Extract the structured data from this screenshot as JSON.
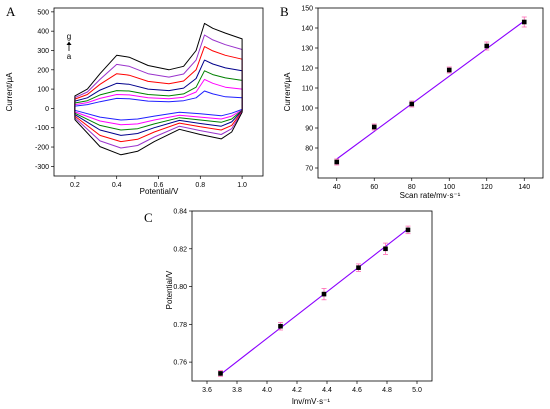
{
  "panels": [
    {
      "letter": "A",
      "chart_data": {
        "type": "line",
        "xlabel": "Potential/V",
        "ylabel": "Current/μA",
        "xlim": [
          0.1,
          1.1
        ],
        "ylim": [
          -350,
          520
        ],
        "xticks": [
          0.2,
          0.4,
          0.6,
          0.8,
          1.0
        ],
        "yticks": [
          -300,
          -200,
          -100,
          0,
          100,
          200,
          300,
          400,
          500
        ],
        "legend_top": "g",
        "legend_bottom": "a",
        "legend_arrow": "up-arrow",
        "series": [
          {
            "color": "#1f1fff",
            "upper": [
              [
                0.2,
                12
              ],
              [
                0.26,
                20
              ],
              [
                0.32,
                35
              ],
              [
                0.4,
                52
              ],
              [
                0.46,
                50
              ],
              [
                0.55,
                38
              ],
              [
                0.65,
                35
              ],
              [
                0.72,
                40
              ],
              [
                0.78,
                55
              ],
              [
                0.82,
                90
              ],
              [
                0.86,
                75
              ],
              [
                0.92,
                60
              ],
              [
                1.0,
                55
              ]
            ],
            "lower": [
              [
                1.0,
                -5
              ],
              [
                0.95,
                -25
              ],
              [
                0.9,
                -38
              ],
              [
                0.8,
                -28
              ],
              [
                0.7,
                -20
              ],
              [
                0.58,
                -40
              ],
              [
                0.5,
                -55
              ],
              [
                0.42,
                -60
              ],
              [
                0.32,
                -45
              ],
              [
                0.2,
                -10
              ]
            ]
          },
          {
            "color": "#ff00ff",
            "upper": [
              [
                0.2,
                20
              ],
              [
                0.26,
                30
              ],
              [
                0.32,
                52
              ],
              [
                0.4,
                72
              ],
              [
                0.46,
                70
              ],
              [
                0.55,
                55
              ],
              [
                0.65,
                50
              ],
              [
                0.72,
                58
              ],
              [
                0.78,
                85
              ],
              [
                0.82,
                150
              ],
              [
                0.86,
                130
              ],
              [
                0.92,
                110
              ],
              [
                1.0,
                100
              ]
            ],
            "lower": [
              [
                1.0,
                -8
              ],
              [
                0.95,
                -40
              ],
              [
                0.9,
                -55
              ],
              [
                0.8,
                -45
              ],
              [
                0.7,
                -35
              ],
              [
                0.58,
                -60
              ],
              [
                0.5,
                -80
              ],
              [
                0.42,
                -85
              ],
              [
                0.32,
                -65
              ],
              [
                0.2,
                -18
              ]
            ]
          },
          {
            "color": "#008000",
            "upper": [
              [
                0.2,
                28
              ],
              [
                0.26,
                40
              ],
              [
                0.32,
                70
              ],
              [
                0.4,
                92
              ],
              [
                0.46,
                90
              ],
              [
                0.55,
                72
              ],
              [
                0.65,
                65
              ],
              [
                0.72,
                75
              ],
              [
                0.78,
                110
              ],
              [
                0.82,
                195
              ],
              [
                0.86,
                175
              ],
              [
                0.92,
                158
              ],
              [
                1.0,
                145
              ]
            ],
            "lower": [
              [
                1.0,
                -10
              ],
              [
                0.95,
                -55
              ],
              [
                0.9,
                -72
              ],
              [
                0.8,
                -60
              ],
              [
                0.7,
                -48
              ],
              [
                0.58,
                -80
              ],
              [
                0.5,
                -105
              ],
              [
                0.42,
                -112
              ],
              [
                0.32,
                -88
              ],
              [
                0.2,
                -25
              ]
            ]
          },
          {
            "color": "#00008b",
            "upper": [
              [
                0.2,
                38
              ],
              [
                0.26,
                55
              ],
              [
                0.32,
                95
              ],
              [
                0.4,
                130
              ],
              [
                0.46,
                125
              ],
              [
                0.55,
                100
              ],
              [
                0.65,
                92
              ],
              [
                0.72,
                105
              ],
              [
                0.78,
                155
              ],
              [
                0.82,
                250
              ],
              [
                0.86,
                230
              ],
              [
                0.92,
                210
              ],
              [
                1.0,
                195
              ]
            ],
            "lower": [
              [
                1.0,
                -12
              ],
              [
                0.95,
                -70
              ],
              [
                0.9,
                -92
              ],
              [
                0.8,
                -78
              ],
              [
                0.7,
                -62
              ],
              [
                0.58,
                -100
              ],
              [
                0.5,
                -130
              ],
              [
                0.42,
                -140
              ],
              [
                0.32,
                -112
              ],
              [
                0.2,
                -32
              ]
            ]
          },
          {
            "color": "#ff0000",
            "upper": [
              [
                0.2,
                48
              ],
              [
                0.26,
                72
              ],
              [
                0.32,
                125
              ],
              [
                0.4,
                180
              ],
              [
                0.46,
                172
              ],
              [
                0.55,
                140
              ],
              [
                0.65,
                128
              ],
              [
                0.72,
                142
              ],
              [
                0.78,
                200
              ],
              [
                0.82,
                320
              ],
              [
                0.86,
                298
              ],
              [
                0.92,
                275
              ],
              [
                1.0,
                255
              ]
            ],
            "lower": [
              [
                1.0,
                -15
              ],
              [
                0.95,
                -88
              ],
              [
                0.9,
                -112
              ],
              [
                0.8,
                -95
              ],
              [
                0.7,
                -76
              ],
              [
                0.58,
                -122
              ],
              [
                0.5,
                -160
              ],
              [
                0.42,
                -172
              ],
              [
                0.32,
                -140
              ],
              [
                0.2,
                -40
              ]
            ]
          },
          {
            "color": "#9932cc",
            "upper": [
              [
                0.2,
                56
              ],
              [
                0.26,
                85
              ],
              [
                0.32,
                150
              ],
              [
                0.4,
                228
              ],
              [
                0.46,
                218
              ],
              [
                0.55,
                180
              ],
              [
                0.65,
                162
              ],
              [
                0.72,
                178
              ],
              [
                0.78,
                250
              ],
              [
                0.82,
                380
              ],
              [
                0.86,
                355
              ],
              [
                0.92,
                330
              ],
              [
                1.0,
                305
              ]
            ],
            "lower": [
              [
                1.0,
                -18
              ],
              [
                0.95,
                -105
              ],
              [
                0.9,
                -135
              ],
              [
                0.8,
                -115
              ],
              [
                0.7,
                -92
              ],
              [
                0.58,
                -148
              ],
              [
                0.5,
                -192
              ],
              [
                0.42,
                -205
              ],
              [
                0.32,
                -168
              ],
              [
                0.2,
                -48
              ]
            ]
          },
          {
            "color": "#000000",
            "upper": [
              [
                0.2,
                65
              ],
              [
                0.26,
                100
              ],
              [
                0.32,
                180
              ],
              [
                0.4,
                275
              ],
              [
                0.46,
                265
              ],
              [
                0.55,
                222
              ],
              [
                0.65,
                200
              ],
              [
                0.72,
                218
              ],
              [
                0.78,
                300
              ],
              [
                0.82,
                440
              ],
              [
                0.86,
                415
              ],
              [
                0.92,
                390
              ],
              [
                1.0,
                360
              ]
            ],
            "lower": [
              [
                1.0,
                -20
              ],
              [
                0.95,
                -122
              ],
              [
                0.9,
                -158
              ],
              [
                0.8,
                -135
              ],
              [
                0.7,
                -108
              ],
              [
                0.58,
                -172
              ],
              [
                0.5,
                -222
              ],
              [
                0.42,
                -240
              ],
              [
                0.32,
                -198
              ],
              [
                0.2,
                -58
              ]
            ]
          }
        ]
      }
    },
    {
      "letter": "B",
      "chart_data": {
        "type": "scatter",
        "xlabel": "Scan rate/mv·s⁻¹",
        "ylabel": "Current/μA",
        "xlim": [
          30,
          150
        ],
        "ylim": [
          65,
          150
        ],
        "xticks": [
          40,
          60,
          80,
          100,
          120,
          140
        ],
        "yticks": [
          70,
          80,
          90,
          100,
          110,
          120,
          130,
          140,
          150
        ],
        "points": [
          {
            "x": 40,
            "y": 73,
            "err": 1.5
          },
          {
            "x": 60,
            "y": 90.5,
            "err": 1.5
          },
          {
            "x": 80,
            "y": 102,
            "err": 1.5
          },
          {
            "x": 100,
            "y": 119,
            "err": 1.5
          },
          {
            "x": 120,
            "y": 131,
            "err": 2
          },
          {
            "x": 140,
            "y": 143,
            "err": 2.5
          }
        ],
        "fit": {
          "x": [
            40,
            140
          ],
          "y": [
            74.5,
            143.5
          ]
        },
        "marker_color": "#000000",
        "fit_color": "#8b00ff",
        "err_color": "#ff69b4"
      }
    },
    {
      "letter": "C",
      "chart_data": {
        "type": "scatter",
        "xlabel": "lnv/mV·s⁻¹",
        "ylabel": "Potential/V",
        "xlim": [
          3.5,
          5.1
        ],
        "ylim": [
          0.75,
          0.84
        ],
        "xticks": [
          3.6,
          3.8,
          4.0,
          4.2,
          4.4,
          4.6,
          4.8,
          5.0
        ],
        "yticks": [
          0.76,
          0.78,
          0.8,
          0.82,
          0.84
        ],
        "tick_decimals": 2,
        "xtick_decimals": 1,
        "points": [
          {
            "x": 3.69,
            "y": 0.754,
            "err": 0.0015
          },
          {
            "x": 4.09,
            "y": 0.779,
            "err": 0.002
          },
          {
            "x": 4.38,
            "y": 0.796,
            "err": 0.003
          },
          {
            "x": 4.61,
            "y": 0.81,
            "err": 0.002
          },
          {
            "x": 4.79,
            "y": 0.82,
            "err": 0.003
          },
          {
            "x": 4.94,
            "y": 0.83,
            "err": 0.002
          }
        ],
        "fit": {
          "x": [
            3.69,
            4.94
          ],
          "y": [
            0.7535,
            0.8305
          ]
        },
        "marker_color": "#000000",
        "fit_color": "#8b00ff",
        "err_color": "#ff69b4"
      }
    }
  ]
}
